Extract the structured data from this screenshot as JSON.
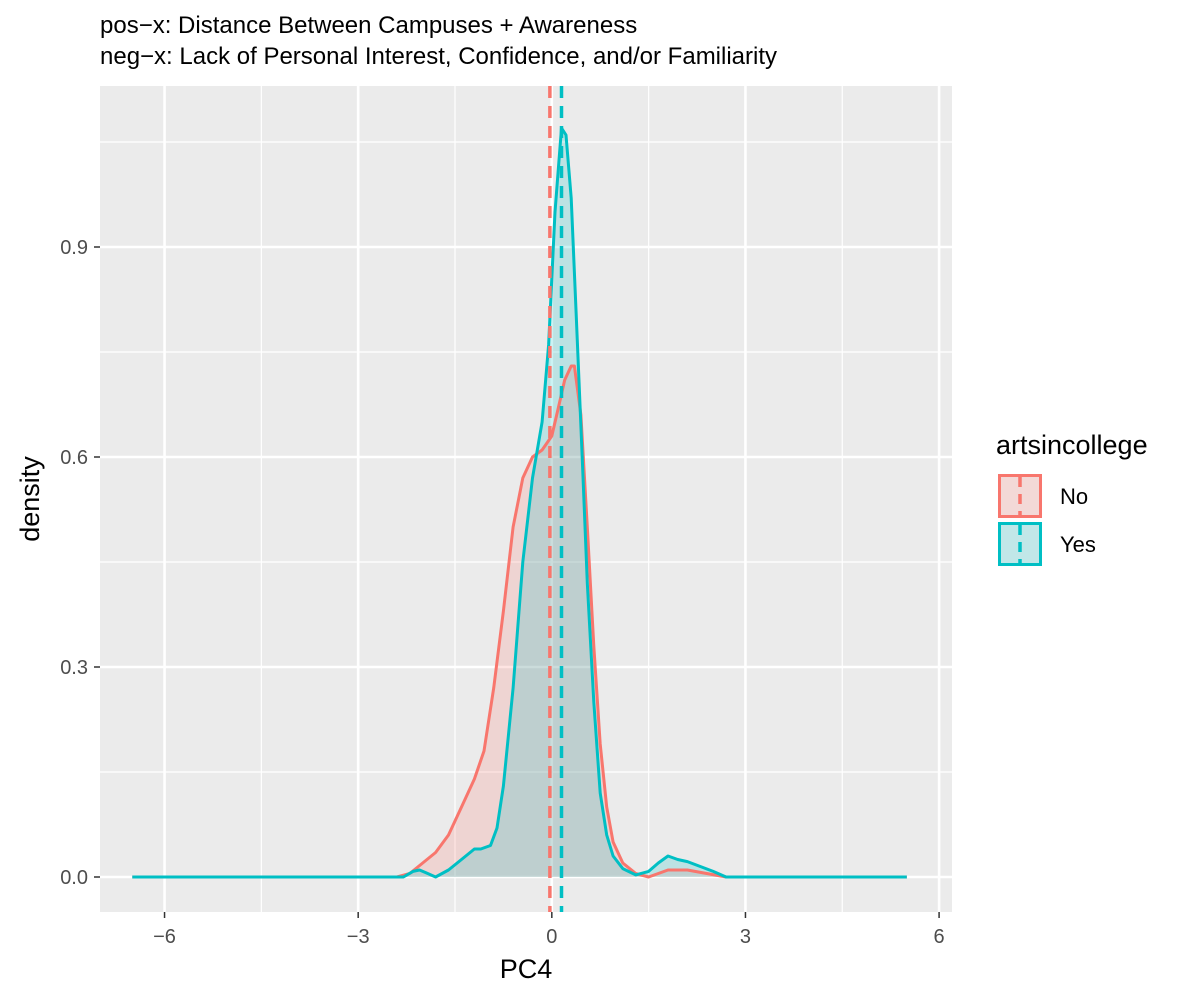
{
  "chart_data": {
    "type": "area",
    "title": [
      "pos−x: Distance Between Campuses + Awareness",
      "neg−x: Lack of Personal Interest, Confidence, and/or Familiarity"
    ],
    "xlabel": "PC4",
    "ylabel": "density",
    "xlim": [
      -7,
      6.2
    ],
    "ylim": [
      -0.05,
      1.13
    ],
    "x_ticks": [
      -6,
      -3,
      0,
      3,
      6
    ],
    "x_tick_labels": [
      "−6",
      "−3",
      "0",
      "3",
      "6"
    ],
    "y_ticks": [
      0.0,
      0.3,
      0.6,
      0.9
    ],
    "y_tick_labels": [
      "0.0",
      "0.3",
      "0.6",
      "0.9"
    ],
    "grid": true,
    "legend": {
      "title": "artsincollege",
      "placement": "right"
    },
    "colors": {
      "panel": "#ebebeb",
      "grid": "#ffffff",
      "overlap_fill": "#cccbc7"
    },
    "series": [
      {
        "name": "No",
        "color": "#f8766d",
        "fill": "#f8766d",
        "mean": -0.03,
        "points": [
          [
            -6.5,
            0.0
          ],
          [
            -2.4,
            0.0
          ],
          [
            -2.2,
            0.005
          ],
          [
            -2.0,
            0.02
          ],
          [
            -1.8,
            0.035
          ],
          [
            -1.6,
            0.06
          ],
          [
            -1.4,
            0.1
          ],
          [
            -1.2,
            0.14
          ],
          [
            -1.05,
            0.18
          ],
          [
            -0.9,
            0.27
          ],
          [
            -0.75,
            0.38
          ],
          [
            -0.6,
            0.5
          ],
          [
            -0.45,
            0.57
          ],
          [
            -0.3,
            0.6
          ],
          [
            -0.15,
            0.61
          ],
          [
            0.0,
            0.63
          ],
          [
            0.1,
            0.67
          ],
          [
            0.2,
            0.71
          ],
          [
            0.3,
            0.73
          ],
          [
            0.35,
            0.73
          ],
          [
            0.45,
            0.66
          ],
          [
            0.55,
            0.5
          ],
          [
            0.65,
            0.33
          ],
          [
            0.75,
            0.19
          ],
          [
            0.85,
            0.1
          ],
          [
            0.95,
            0.05
          ],
          [
            1.1,
            0.02
          ],
          [
            1.3,
            0.005
          ],
          [
            1.5,
            0.0
          ],
          [
            1.8,
            0.01
          ],
          [
            2.1,
            0.01
          ],
          [
            2.4,
            0.005
          ],
          [
            2.7,
            0.0
          ],
          [
            5.5,
            0.0
          ]
        ]
      },
      {
        "name": "Yes",
        "color": "#00bfc4",
        "fill": "#00bfc4",
        "mean": 0.15,
        "points": [
          [
            -6.5,
            0.0
          ],
          [
            -2.3,
            0.0
          ],
          [
            -2.15,
            0.008
          ],
          [
            -2.05,
            0.01
          ],
          [
            -1.95,
            0.006
          ],
          [
            -1.8,
            0.0
          ],
          [
            -1.6,
            0.01
          ],
          [
            -1.4,
            0.025
          ],
          [
            -1.2,
            0.04
          ],
          [
            -1.1,
            0.04
          ],
          [
            -0.95,
            0.045
          ],
          [
            -0.85,
            0.07
          ],
          [
            -0.75,
            0.13
          ],
          [
            -0.6,
            0.27
          ],
          [
            -0.45,
            0.45
          ],
          [
            -0.3,
            0.57
          ],
          [
            -0.15,
            0.65
          ],
          [
            -0.05,
            0.76
          ],
          [
            0.05,
            0.95
          ],
          [
            0.15,
            1.07
          ],
          [
            0.22,
            1.06
          ],
          [
            0.3,
            0.97
          ],
          [
            0.38,
            0.8
          ],
          [
            0.47,
            0.6
          ],
          [
            0.55,
            0.42
          ],
          [
            0.65,
            0.25
          ],
          [
            0.75,
            0.12
          ],
          [
            0.85,
            0.06
          ],
          [
            0.95,
            0.03
          ],
          [
            1.1,
            0.012
          ],
          [
            1.3,
            0.003
          ],
          [
            1.5,
            0.008
          ],
          [
            1.65,
            0.02
          ],
          [
            1.8,
            0.03
          ],
          [
            1.95,
            0.025
          ],
          [
            2.1,
            0.022
          ],
          [
            2.3,
            0.015
          ],
          [
            2.5,
            0.008
          ],
          [
            2.7,
            0.0
          ],
          [
            5.5,
            0.0
          ]
        ]
      }
    ]
  }
}
